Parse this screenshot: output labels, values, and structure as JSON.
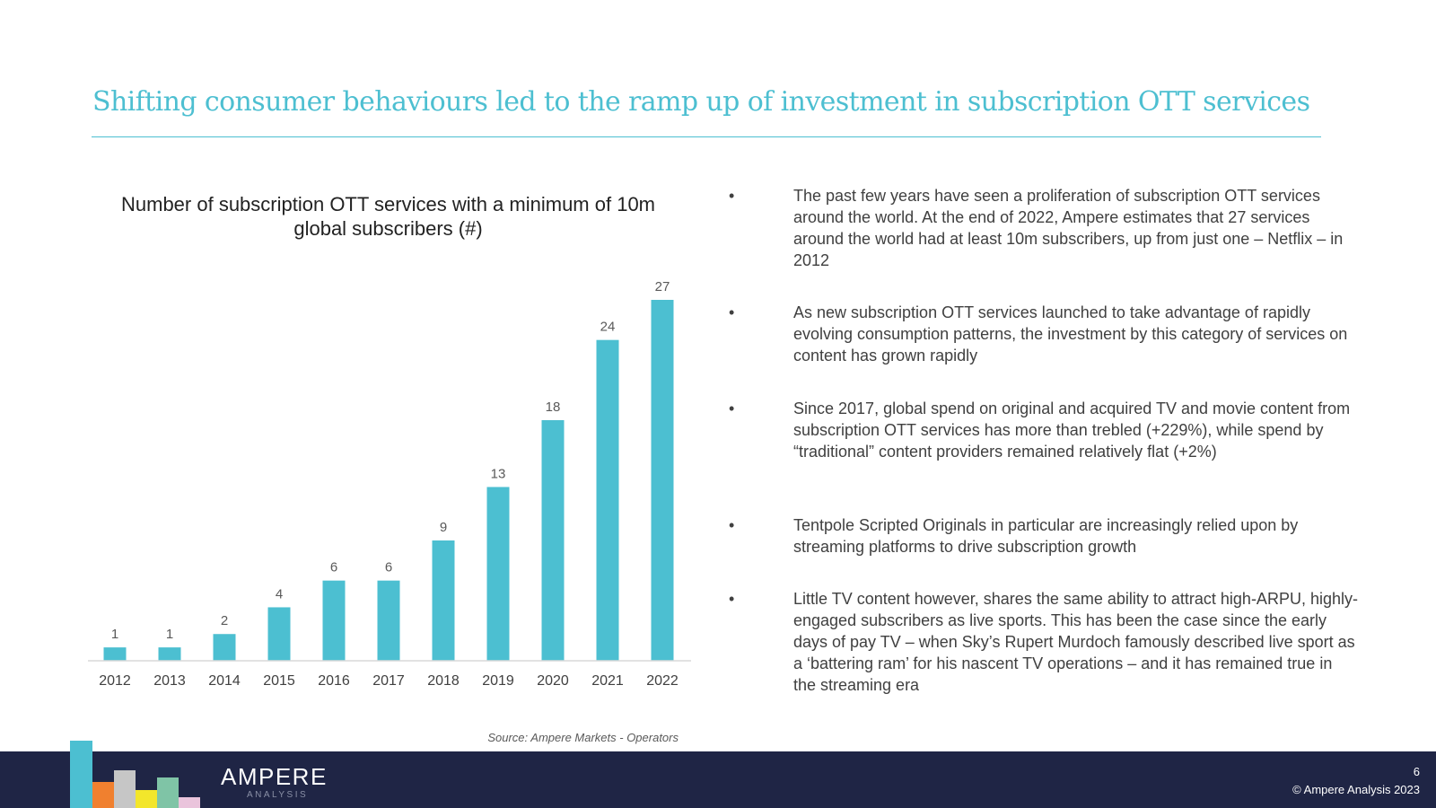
{
  "slide": {
    "title": "Shifting consumer behaviours led to the ramp up of investment in subscription OTT services",
    "page_number": "6",
    "copyright": "© Ampere Analysis 2023",
    "source": "Source: Ampere Markets - Operators"
  },
  "brand": {
    "name": "AMPERE",
    "subname": "ANALYSIS",
    "logo_colors": [
      "#4cbfd1",
      "#f0802f",
      "#c6c6c6",
      "#f3e62b",
      "#7fc4a6",
      "#eac4dc"
    ]
  },
  "chart_data": {
    "type": "bar",
    "title": "Number of subscription OTT services with a minimum of 10m global subscribers (#)",
    "categories": [
      "2012",
      "2013",
      "2014",
      "2015",
      "2016",
      "2017",
      "2018",
      "2019",
      "2020",
      "2021",
      "2022"
    ],
    "values": [
      1,
      1,
      2,
      4,
      6,
      6,
      9,
      13,
      18,
      24,
      27
    ],
    "xlabel": "",
    "ylabel": "",
    "ylim": [
      0,
      27
    ],
    "grid": false,
    "bar_color": "#4cbfd1"
  },
  "bullets": [
    "The past few years have seen a proliferation of subscription OTT services around the world. At the end of 2022, Ampere estimates that 27 services around the world had at least 10m subscribers, up from just one – Netflix – in 2012",
    "As new subscription OTT services launched to take advantage of rapidly evolving consumption patterns, the investment by this category of services on content has grown rapidly",
    "Since 2017, global spend on original and acquired TV and movie content from subscription OTT services has more than trebled (+229%), while spend by “traditional” content providers remained relatively flat (+2%)",
    "Tentpole Scripted Originals in particular are increasingly relied upon by streaming platforms to drive subscription growth",
    "Little TV content however, shares the same ability to attract high-ARPU, highly-engaged subscribers as live sports. This has been the case since the early days of pay TV – when Sky’s Rupert Murdoch famously described live sport as a ‘battering ram’ for his nascent TV operations – and it has remained true in the streaming era"
  ],
  "bullet_marker": "•"
}
